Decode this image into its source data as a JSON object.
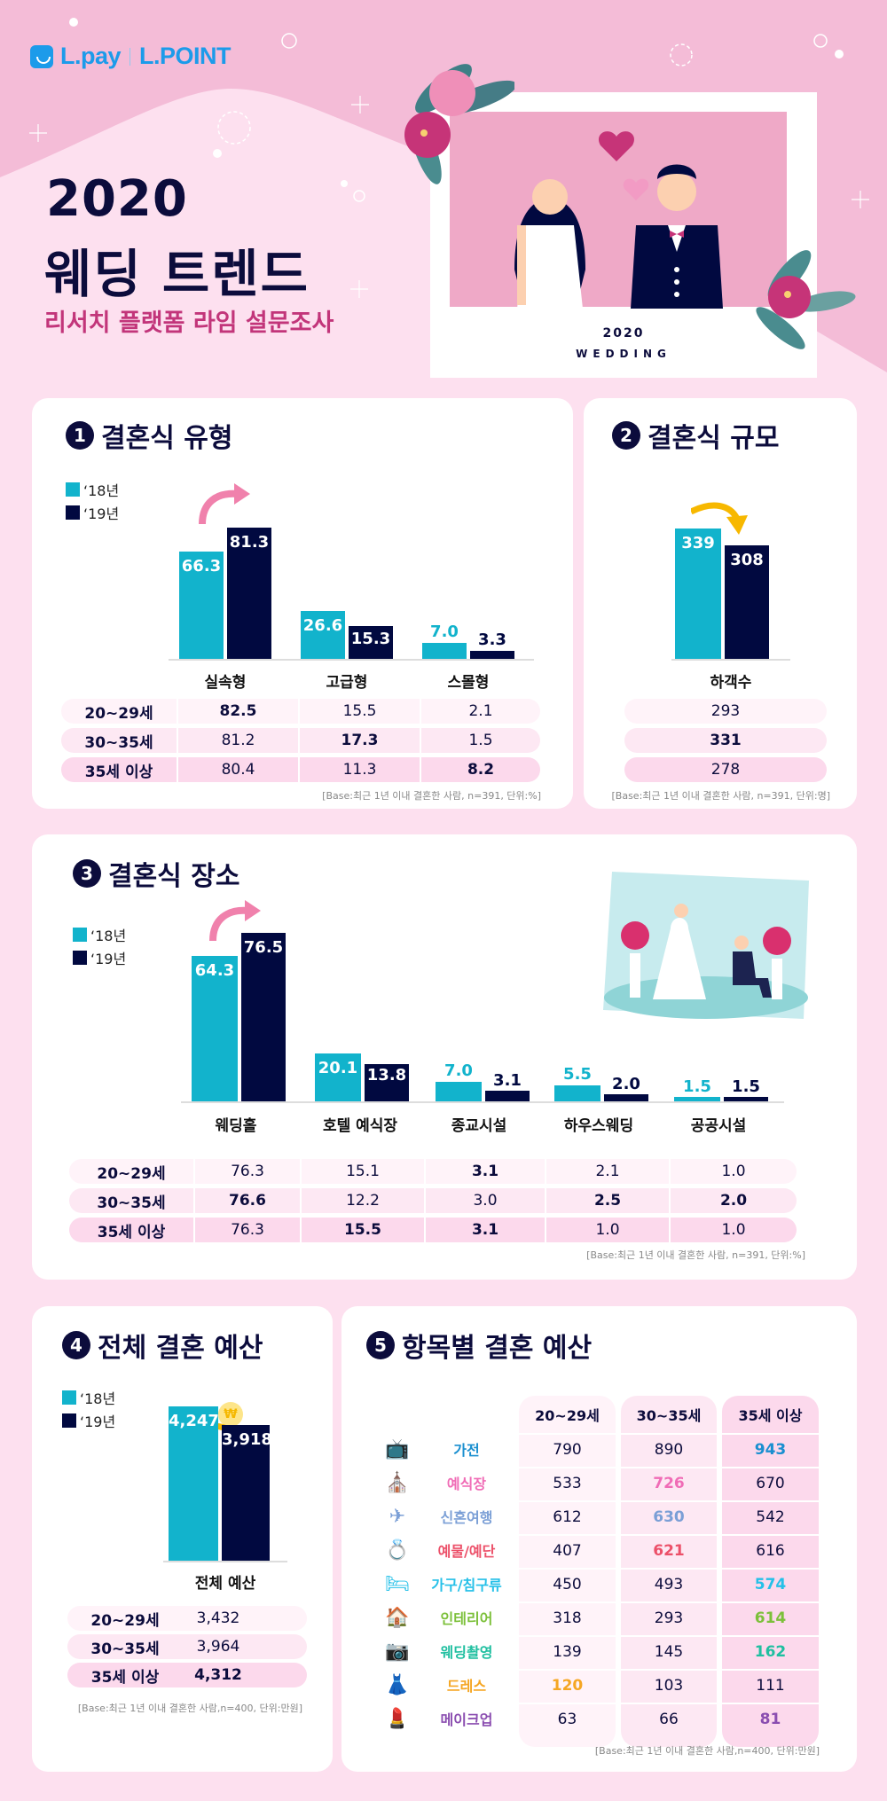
{
  "header": {
    "logo_pay": "L.pay",
    "logo_point": "L.POINT",
    "title_year": "2020",
    "title_main": "웨딩 트렌드",
    "subtitle": "리서치 플랫폼 라임 설문조사",
    "frame_caption_year": "2020",
    "frame_caption_word": "WEDDING"
  },
  "legend": {
    "y18": "‘18년",
    "y19": "‘19년"
  },
  "colors": {
    "y18": "#12b3cc",
    "y19": "#010940",
    "navy": "#0c0c3c",
    "pink_accent": "#c2357a",
    "up_arrow": "#f081ac",
    "down_arrow": "#f7b800"
  },
  "sections": {
    "s1": {
      "num": "1",
      "title": "결혼식 유형"
    },
    "s2": {
      "num": "2",
      "title": "결혼식 규모"
    },
    "s3": {
      "num": "3",
      "title": "결혼식 장소"
    },
    "s4": {
      "num": "4",
      "title": "전체 결혼 예산"
    },
    "s5": {
      "num": "5",
      "title": "항목별 결혼 예산"
    }
  },
  "age_groups": [
    "20~29세",
    "30~35세",
    "35세 이상"
  ],
  "chart_data": [
    {
      "type": "bar",
      "title": "결혼식 유형",
      "categories": [
        "실속형",
        "고급형",
        "스몰형"
      ],
      "series": [
        {
          "name": "‘18년",
          "values": [
            66.3,
            26.6,
            7.0
          ]
        },
        {
          "name": "‘19년",
          "values": [
            81.3,
            15.3,
            3.3
          ]
        }
      ],
      "value_labels": {
        "y18": [
          "66.3",
          "26.6",
          "7.0"
        ],
        "y19": [
          "81.3",
          "15.3",
          "3.3"
        ]
      },
      "table": {
        "rows": [
          {
            "label": "20~29세",
            "values": [
              "82.5",
              "15.5",
              "2.1"
            ],
            "bold": [
              true,
              false,
              false
            ]
          },
          {
            "label": "30~35세",
            "values": [
              "81.2",
              "17.3",
              "1.5"
            ],
            "bold": [
              false,
              true,
              false
            ]
          },
          {
            "label": "35세 이상",
            "values": [
              "80.4",
              "11.3",
              "8.2"
            ],
            "bold": [
              false,
              false,
              true
            ]
          }
        ]
      },
      "note": "[Base:최근 1년 이내 결혼한 사람, n=391, 단위:%]",
      "ylabel": "%"
    },
    {
      "type": "bar",
      "title": "결혼식 규모",
      "categories": [
        "하객수"
      ],
      "series": [
        {
          "name": "‘18년",
          "values": [
            339
          ]
        },
        {
          "name": "‘19년",
          "values": [
            308
          ]
        }
      ],
      "value_labels": {
        "y18": [
          "339"
        ],
        "y19": [
          "308"
        ]
      },
      "table": {
        "rows": [
          {
            "label": "20~29세",
            "values": [
              "293"
            ],
            "bold": [
              false
            ]
          },
          {
            "label": "30~35세",
            "values": [
              "331"
            ],
            "bold": [
              true
            ]
          },
          {
            "label": "35세 이상",
            "values": [
              "278"
            ],
            "bold": [
              false
            ]
          }
        ]
      },
      "note": "[Base:최근 1년 이내 결혼한 사람, n=391, 단위:명]",
      "ylabel": "명"
    },
    {
      "type": "bar",
      "title": "결혼식 장소",
      "categories": [
        "웨딩홀",
        "호텔 예식장",
        "종교시설",
        "하우스웨딩",
        "공공시설"
      ],
      "series": [
        {
          "name": "‘18년",
          "values": [
            64.3,
            20.1,
            7.0,
            5.5,
            1.5
          ]
        },
        {
          "name": "‘19년",
          "values": [
            76.5,
            13.8,
            3.1,
            2.0,
            1.5
          ]
        }
      ],
      "value_labels": {
        "y18": [
          "64.3",
          "20.1",
          "7.0",
          "5.5",
          "1.5"
        ],
        "y19": [
          "76.5",
          "13.8",
          "3.1",
          "2.0",
          "1.5"
        ]
      },
      "table": {
        "rows": [
          {
            "label": "20~29세",
            "values": [
              "76.3",
              "15.1",
              "3.1",
              "2.1",
              "1.0"
            ],
            "bold": [
              false,
              false,
              true,
              false,
              false
            ]
          },
          {
            "label": "30~35세",
            "values": [
              "76.6",
              "12.2",
              "3.0",
              "2.5",
              "2.0"
            ],
            "bold": [
              true,
              false,
              false,
              true,
              true
            ]
          },
          {
            "label": "35세 이상",
            "values": [
              "76.3",
              "15.5",
              "3.1",
              "1.0",
              "1.0"
            ],
            "bold": [
              false,
              true,
              true,
              false,
              false
            ]
          }
        ]
      },
      "note": "[Base:최근 1년 이내 결혼한 사람, n=391, 단위:%]",
      "ylabel": "%"
    },
    {
      "type": "bar",
      "title": "전체 결혼 예산",
      "categories": [
        "전체 예산"
      ],
      "series": [
        {
          "name": "‘18년",
          "values": [
            4247
          ]
        },
        {
          "name": "‘19년",
          "values": [
            3918
          ]
        }
      ],
      "value_labels": {
        "y18": [
          "4,247"
        ],
        "y19": [
          "3,918"
        ]
      },
      "table": {
        "rows": [
          {
            "label": "20~29세",
            "values": [
              "3,432"
            ],
            "bold": [
              false
            ]
          },
          {
            "label": "30~35세",
            "values": [
              "3,964"
            ],
            "bold": [
              false
            ]
          },
          {
            "label": "35세 이상",
            "values": [
              "4,312"
            ],
            "bold": [
              true
            ]
          }
        ]
      },
      "note": "[Base:최근 1년 이내 결혼한 사람,n=400, 단위:만원]",
      "ylabel": "만원"
    },
    {
      "type": "table",
      "title": "항목별 결혼 예산",
      "columns": [
        "20~29세",
        "30~35세",
        "35세 이상"
      ],
      "rows": [
        {
          "item": "가전",
          "icon": "tv-icon",
          "glyph": "📺",
          "color": "#1a8fd0",
          "values": [
            "790",
            "890",
            "943"
          ],
          "highlight": 2
        },
        {
          "item": "예식장",
          "icon": "chapel-icon",
          "glyph": "⛪",
          "color": "#f06cb6",
          "values": [
            "533",
            "726",
            "670"
          ],
          "highlight": 1
        },
        {
          "item": "신혼여행",
          "icon": "airplane-icon",
          "glyph": "✈",
          "color": "#7b9fd6",
          "values": [
            "612",
            "630",
            "542"
          ],
          "highlight": 1
        },
        {
          "item": "예물/예단",
          "icon": "ring-icon",
          "glyph": "💍",
          "color": "#ec5069",
          "values": [
            "407",
            "621",
            "616"
          ],
          "highlight": 1
        },
        {
          "item": "가구/침구류",
          "icon": "bed-icon",
          "glyph": "🛏",
          "color": "#25c0e8",
          "values": [
            "450",
            "493",
            "574"
          ],
          "highlight": 2
        },
        {
          "item": "인테리어",
          "icon": "house-icon",
          "glyph": "🏠",
          "color": "#7cc03a",
          "values": [
            "318",
            "293",
            "614"
          ],
          "highlight": 2
        },
        {
          "item": "웨딩촬영",
          "icon": "camera-icon",
          "glyph": "📷",
          "color": "#1fbfa0",
          "values": [
            "139",
            "145",
            "162"
          ],
          "highlight": 2
        },
        {
          "item": "드레스",
          "icon": "dress-icon",
          "glyph": "👗",
          "color": "#f5a623",
          "values": [
            "120",
            "103",
            "111"
          ],
          "highlight": 0
        },
        {
          "item": "메이크업",
          "icon": "makeup-icon",
          "glyph": "💄",
          "color": "#8a4db0",
          "values": [
            "63",
            "66",
            "81"
          ],
          "highlight": 2
        }
      ],
      "note": "[Base:최근 1년 이내 결혼한 사람,n=400, 단위:만원]",
      "ylabel": "만원"
    }
  ]
}
